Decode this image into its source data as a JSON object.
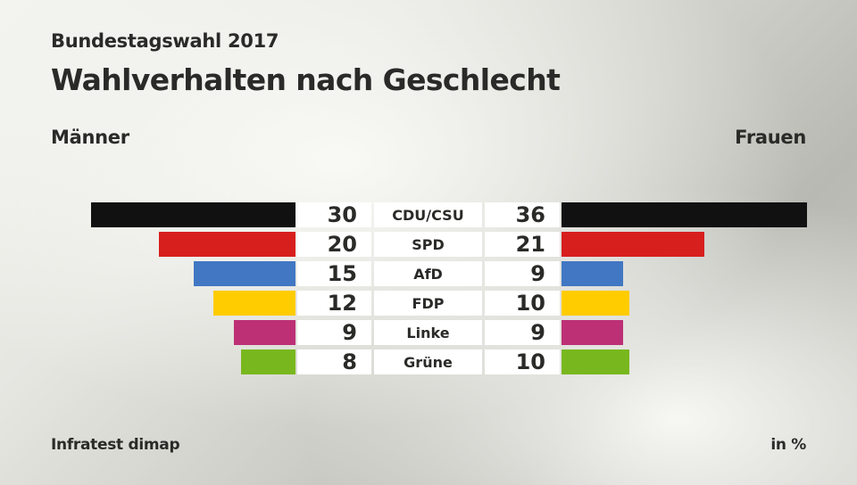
{
  "header": {
    "subtitle": "Bundestagswahl 2017",
    "title": "Wahlverhalten nach Geschlecht"
  },
  "footer": {
    "source": "Infratest dimap",
    "unit": "in %"
  },
  "chart_data": {
    "type": "bar",
    "orientation": "horizontal-butterfly",
    "title": "Wahlverhalten nach Geschlecht",
    "subtitle": "Bundestagswahl 2017",
    "left_label": "Männer",
    "right_label": "Frauen",
    "unit": "in %",
    "categories": [
      "CDU/CSU",
      "SPD",
      "AfD",
      "FDP",
      "Linke",
      "Grüne"
    ],
    "colors": [
      "#111111",
      "#d71f1d",
      "#4177c3",
      "#ffcc00",
      "#bd3075",
      "#78b81e"
    ],
    "series": [
      {
        "name": "Männer",
        "values": [
          30,
          20,
          15,
          12,
          9,
          8
        ]
      },
      {
        "name": "Frauen",
        "values": [
          36,
          21,
          9,
          10,
          9,
          10
        ]
      }
    ],
    "grid": false,
    "legend": "none"
  }
}
